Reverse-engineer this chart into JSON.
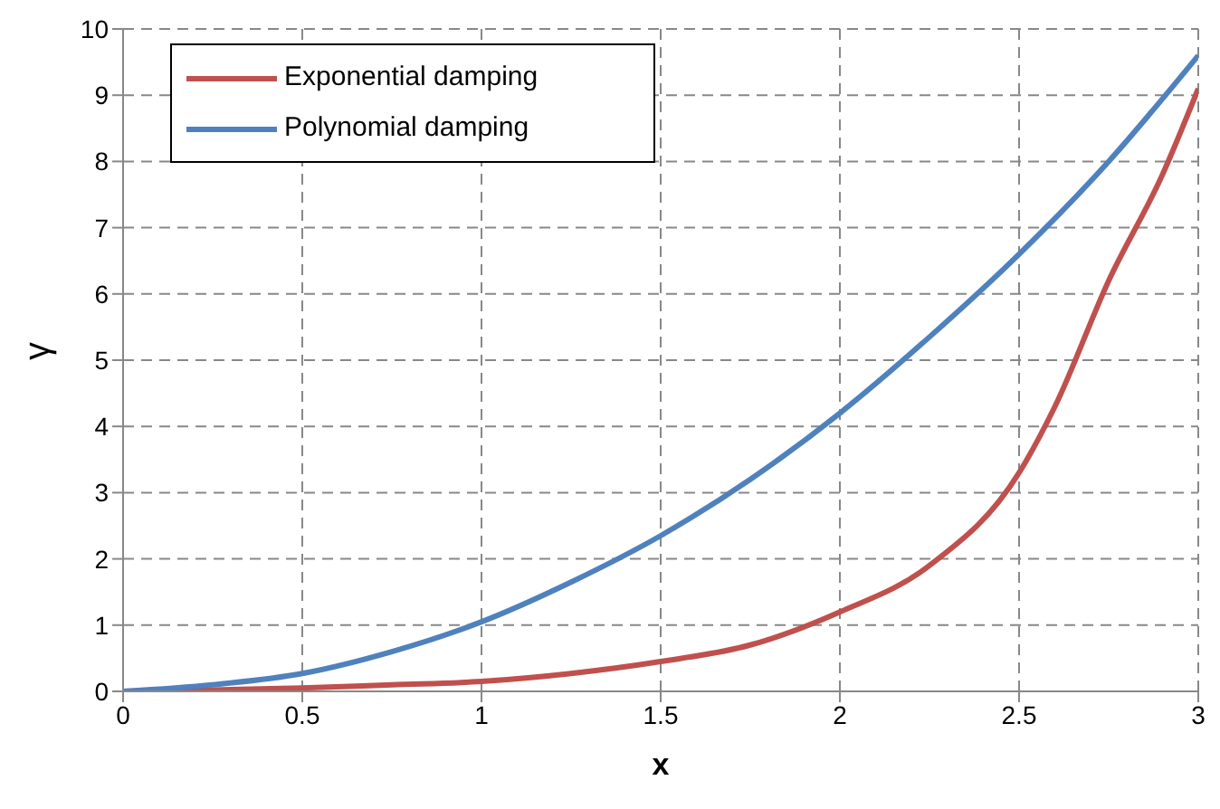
{
  "chart_data": {
    "type": "line",
    "xlabel": "x",
    "ylabel": "γ",
    "xlim": [
      0,
      3
    ],
    "ylim": [
      0,
      10
    ],
    "xticks": [
      0,
      0.5,
      1,
      1.5,
      2,
      2.5,
      3
    ],
    "yticks": [
      0,
      1,
      2,
      3,
      4,
      5,
      6,
      7,
      8,
      9,
      10
    ],
    "grid": true,
    "legend": "top left",
    "marker": "none",
    "line_style": "solid",
    "series": [
      {
        "name": "Exponential damping",
        "color": "#c0504d",
        "x": [
          0,
          0.25,
          0.5,
          0.75,
          1,
          1.25,
          1.5,
          1.75,
          2,
          2.25,
          2.5,
          2.6,
          2.75,
          2.9,
          3
        ],
        "values": [
          0,
          0.02,
          0.05,
          0.1,
          0.15,
          0.27,
          0.45,
          0.7,
          1.2,
          1.9,
          3.3,
          4.3,
          6.2,
          7.8,
          9.1
        ]
      },
      {
        "name": "Polynomial damping",
        "color": "#4f81bd",
        "x": [
          0,
          0.25,
          0.5,
          0.75,
          1,
          1.25,
          1.5,
          1.75,
          2,
          2.25,
          2.5,
          2.75,
          3
        ],
        "values": [
          0,
          0.1,
          0.27,
          0.6,
          1.05,
          1.65,
          2.35,
          3.2,
          4.2,
          5.35,
          6.6,
          8.0,
          9.6
        ]
      }
    ]
  }
}
